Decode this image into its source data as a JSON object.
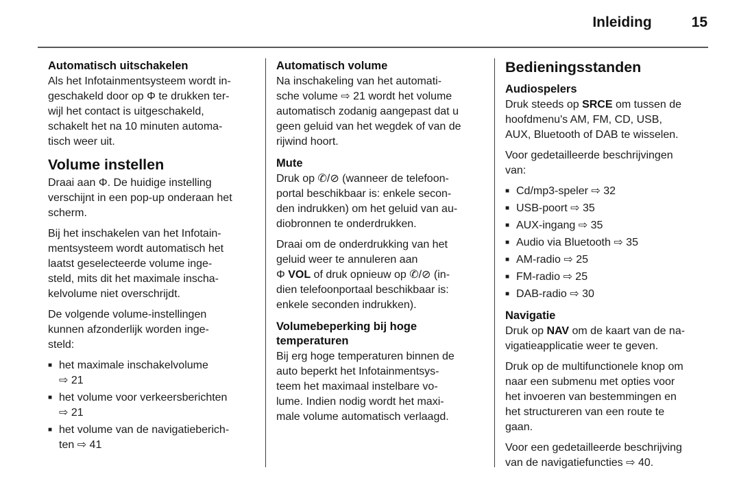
{
  "glyphs": {
    "bullet": "■"
  },
  "header": {
    "title": "Inleiding",
    "page_number": "15"
  },
  "col1": {
    "heading1": "Automatisch uitschakelen",
    "para1": "Als het Infotainmentsysteem wordt in-\ngeschakeld door op Φ te drukken ter-\nwijl het contact is uitgeschakeld,\nschakelt het na 10 minuten automa-\ntisch weer uit.",
    "heading2": "Volume instellen",
    "para2": "Draai aan Φ. De huidige instelling\nverschijnt in een pop-up onderaan het\nscherm.",
    "para3": "Bij het inschakelen van het Infotain-\nmentsysteem wordt automatisch het\nlaatst geselecteerde volume inge-\nsteld, mits dit het maximale inscha-\nkelvolume niet overschrijdt.",
    "para4": "De volgende volume-instellingen\nkunnen afzonderlijk worden inge-\nsteld:",
    "bullets": [
      "het maximale inschakelvolume\n⇨ 21",
      "het volume voor verkeersberichten\n⇨ 21",
      "het volume van de navigatieberich-\nten ⇨ 41"
    ]
  },
  "col2": {
    "heading1": "Automatisch volume",
    "para1": "Na inschakeling van het automati-\nsche volume ⇨ 21 wordt het volume\nautomatisch zodanig aangepast dat u\ngeen geluid van het wegdek of van de\nrijwind hoort.",
    "heading2": "Mute",
    "para2": "Druk op ✆/⊘ (wanneer de telefoon-\nportal beschikbaar is: enkele secon-\nden indrukken) om het geluid van au-\ndiobronnen te onderdrukken.",
    "para3_pre": "Draai om de onderdrukking van het\ngeluid weer te annuleren aan\nΦ ",
    "para3_bold": "VOL",
    "para3_post": " of druk opnieuw op ✆/⊘ (in-\ndien telefoonportaal beschikbaar is:\nenkele seconden indrukken).",
    "heading3": "Volumebeperking bij hoge\ntemperaturen",
    "para4": "Bij erg hoge temperaturen binnen de\nauto beperkt het Infotainmentsys-\nteem het maximaal instelbare vo-\nlume. Indien nodig wordt het maxi-\nmale volume automatisch verlaagd."
  },
  "col3": {
    "heading1": "Bedieningsstanden",
    "heading2": "Audiospelers",
    "para1_pre": "Druk steeds op ",
    "para1_bold": "SRCE",
    "para1_post": " om tussen de\nhoofdmenu's AM, FM, CD, USB,\nAUX, Bluetooth of DAB te wisselen.",
    "para2": "Voor gedetailleerde beschrijvingen\nvan:",
    "bullets": [
      "Cd/mp3-speler ⇨ 32",
      "USB-poort ⇨ 35",
      "AUX-ingang ⇨ 35",
      "Audio via Bluetooth ⇨ 35",
      "AM-radio ⇨ 25",
      "FM-radio ⇨ 25",
      "DAB-radio ⇨ 30"
    ],
    "heading3": "Navigatie",
    "para3_pre": "Druk op ",
    "para3_bold": "NAV",
    "para3_post": " om de kaart van de na-\nvigatieapplicatie weer te geven.",
    "para4": "Druk op de multifunctionele knop om\nnaar een submenu met opties voor\nhet invoeren van bestemmingen en\nhet structureren van een route te\ngaan.",
    "para5": "Voor een gedetailleerde beschrijving\nvan de navigatiefuncties ⇨ 40."
  }
}
